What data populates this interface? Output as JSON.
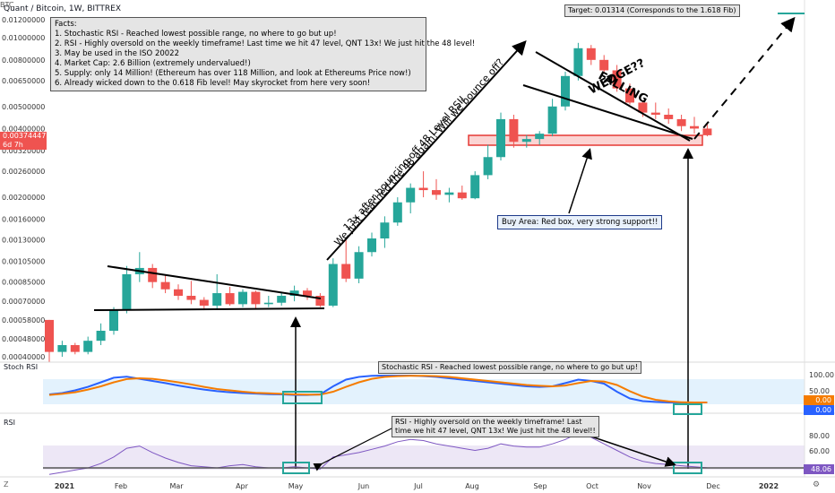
{
  "header": {
    "title": "Quant / Bitcoin, 1W, BITTREX",
    "currency": "BTC"
  },
  "facts": {
    "heading": "Facts:",
    "lines": [
      "1. Stochastic RSI - Reached lowest possible range, no where to go but up!",
      "2. RSI - Highly oversold on the weekly timeframe! Last time we hit 47 level, QNT 13x! We just hit the 48 level!",
      "3. May be used in the ISO 20022",
      "4. Market Cap: 2.6 Billion (extremely undervalued!)",
      "5. Supply: only 14 Million! (Ethereum has over 118 Million, and look at Ethereums Price now!)",
      "6. Already wicked down to the 0.618 Fib level! May skyrocket from here very soon!"
    ]
  },
  "annotations": {
    "target": "Target: 0.01314 (Corresponds to the 1.618 Fib)",
    "wedge": "FALLING WEDGE??",
    "rotated_line1": "13x after bouncing off 48 Level RSI!",
    "rotated_line2": "We just reached the 48 again! Will we bounce off?",
    "buy_area": "Buy Area: Red box, very strong support!!",
    "stoch_note": "Stochastic RSI - Reached lowest possible range, no where to go but up!",
    "rsi_note_1": "RSI - Highly oversold on the weekly timeframe! Last",
    "rsi_note_2": "time we hit 47 level, QNT 13x! We just hit the 48 level!!"
  },
  "price_tag": {
    "value": "0.00374447",
    "countdown": "6d 7h"
  },
  "stoch_tags": {
    "k": "0.00",
    "d": "0.00"
  },
  "rsi_tag": "48.06",
  "panels": {
    "stoch_label": "Stoch RSI",
    "rsi_label": "RSI"
  },
  "x_labels": [
    "2021",
    "Feb",
    "Mar",
    "Apr",
    "May",
    "Jun",
    "Jul",
    "Aug",
    "Sep",
    "Oct",
    "Nov",
    "Dec",
    "2022"
  ],
  "price_axis": [
    "0.01200000",
    "0.01000000",
    "0.00800000",
    "0.00650000",
    "0.00500000",
    "0.00400000",
    "0.00320000",
    "0.00260000",
    "0.00200000",
    "0.00160000",
    "0.00130000",
    "0.00105000",
    "0.00085000",
    "0.00070000",
    "0.00058000",
    "0.00048000",
    "0.00040000"
  ],
  "stoch_axis": [
    "100.00",
    "50.00"
  ],
  "rsi_axis": [
    "80.00",
    "60.00"
  ],
  "colors": {
    "up": "#26a69a",
    "down": "#ef5350",
    "k": "#2962ff",
    "d": "#f57c00",
    "rsi": "#7e57c2",
    "target": "#26a69a"
  },
  "chart_data": {
    "type": "candlestick",
    "symbol": "Quant / Bitcoin",
    "timeframe": "1W",
    "exchange": "BITTREX",
    "log_scale": true,
    "candles": [
      [
        0.00058,
        0.00058,
        0.00038,
        0.00042
      ],
      [
        0.00042,
        0.00047,
        0.0004,
        0.00045
      ],
      [
        0.00045,
        0.00046,
        0.00041,
        0.00042
      ],
      [
        0.00042,
        0.00049,
        0.00041,
        0.00047
      ],
      [
        0.00047,
        0.00056,
        0.00045,
        0.00052
      ],
      [
        0.00052,
        0.00066,
        0.0005,
        0.00064
      ],
      [
        0.00064,
        0.001,
        0.00062,
        0.00092
      ],
      [
        0.00092,
        0.00115,
        0.00085,
        0.00098
      ],
      [
        0.00098,
        0.00102,
        0.0008,
        0.00085
      ],
      [
        0.00085,
        0.00091,
        0.00076,
        0.00079
      ],
      [
        0.00079,
        0.00083,
        0.00071,
        0.00074
      ],
      [
        0.00074,
        0.00086,
        0.00068,
        0.00071
      ],
      [
        0.00071,
        0.00073,
        0.00064,
        0.00067
      ],
      [
        0.00067,
        0.00092,
        0.00065,
        0.00076
      ],
      [
        0.00076,
        0.00081,
        0.00067,
        0.00068
      ],
      [
        0.00068,
        0.00079,
        0.00066,
        0.00077
      ],
      [
        0.00077,
        0.00078,
        0.00065,
        0.00068
      ],
      [
        0.00068,
        0.00074,
        0.00066,
        0.00069
      ],
      [
        0.00069,
        0.00076,
        0.00067,
        0.00074
      ],
      [
        0.00074,
        0.00082,
        0.0007,
        0.00078
      ],
      [
        0.00078,
        0.0008,
        0.00071,
        0.00074
      ],
      [
        0.00074,
        0.00076,
        0.00066,
        0.00067
      ],
      [
        0.00067,
        0.00108,
        0.00066,
        0.00102
      ],
      [
        0.00102,
        0.00132,
        0.00085,
        0.00088
      ],
      [
        0.00088,
        0.00122,
        0.00084,
        0.00115
      ],
      [
        0.00115,
        0.0014,
        0.0011,
        0.00132
      ],
      [
        0.00132,
        0.00165,
        0.0012,
        0.00155
      ],
      [
        0.00155,
        0.002,
        0.0015,
        0.0019
      ],
      [
        0.0019,
        0.0023,
        0.0017,
        0.0022
      ],
      [
        0.0022,
        0.0026,
        0.002,
        0.00215
      ],
      [
        0.00215,
        0.0024,
        0.00195,
        0.00205
      ],
      [
        0.00205,
        0.0022,
        0.0019,
        0.0021
      ],
      [
        0.0021,
        0.00225,
        0.00195,
        0.00198
      ],
      [
        0.00198,
        0.0026,
        0.00196,
        0.0025
      ],
      [
        0.0025,
        0.0034,
        0.0024,
        0.003
      ],
      [
        0.003,
        0.0047,
        0.0029,
        0.0044
      ],
      [
        0.0044,
        0.0046,
        0.0033,
        0.0035
      ],
      [
        0.0035,
        0.00375,
        0.0033,
        0.0036
      ],
      [
        0.0036,
        0.0039,
        0.0034,
        0.0038
      ],
      [
        0.0038,
        0.0054,
        0.0037,
        0.005
      ],
      [
        0.005,
        0.0071,
        0.0048,
        0.0068
      ],
      [
        0.0068,
        0.0095,
        0.0065,
        0.009
      ],
      [
        0.009,
        0.0093,
        0.0076,
        0.008
      ],
      [
        0.008,
        0.0084,
        0.007,
        0.0072
      ],
      [
        0.0072,
        0.0076,
        0.0058,
        0.006
      ],
      [
        0.006,
        0.0063,
        0.0051,
        0.0052
      ],
      [
        0.0052,
        0.0053,
        0.0045,
        0.0047
      ],
      [
        0.0047,
        0.0052,
        0.0044,
        0.0046
      ],
      [
        0.0046,
        0.0049,
        0.0042,
        0.0044
      ],
      [
        0.0044,
        0.0046,
        0.0039,
        0.0041
      ],
      [
        0.0041,
        0.0045,
        0.0038,
        0.004
      ],
      [
        0.004,
        0.0042,
        0.0037,
        0.00374
      ]
    ],
    "target": 0.01314,
    "stoch_rsi": {
      "k": [
        30,
        35,
        45,
        58,
        75,
        92,
        96,
        88,
        80,
        72,
        63,
        55,
        48,
        42,
        38,
        35,
        33,
        31,
        30,
        28,
        28,
        30,
        60,
        85,
        95,
        99,
        100,
        100,
        100,
        98,
        95,
        90,
        85,
        80,
        75,
        70,
        65,
        60,
        58,
        60,
        72,
        85,
        80,
        70,
        40,
        15,
        5,
        2,
        0,
        0,
        0,
        0
      ],
      "d": [
        28,
        32,
        38,
        48,
        60,
        75,
        87,
        90,
        88,
        82,
        75,
        67,
        58,
        50,
        45,
        40,
        36,
        34,
        32,
        30,
        29,
        29,
        40,
        58,
        75,
        88,
        95,
        98,
        99,
        99,
        98,
        95,
        90,
        85,
        80,
        75,
        70,
        65,
        62,
        60,
        63,
        72,
        80,
        78,
        65,
        42,
        22,
        10,
        4,
        1,
        0,
        0
      ]
    },
    "rsi": [
      42,
      44,
      46,
      48,
      52,
      58,
      66,
      68,
      62,
      57,
      53,
      50,
      49,
      48,
      50,
      51,
      49,
      48,
      48,
      49,
      48,
      47,
      58,
      60,
      62,
      65,
      68,
      72,
      74,
      73,
      70,
      68,
      66,
      64,
      66,
      70,
      68,
      67,
      67,
      70,
      74,
      80,
      76,
      70,
      64,
      58,
      54,
      52,
      51,
      50,
      49,
      48.06
    ]
  }
}
